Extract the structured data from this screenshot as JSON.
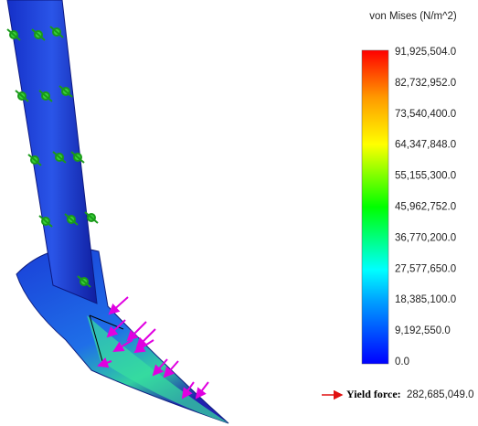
{
  "legend": {
    "title": "von Mises (N/m^2)",
    "ticks": [
      "91,925,504.0",
      "82,732,952.0",
      "73,540,400.0",
      "64,347,848.0",
      "55,155,300.0",
      "45,962,752.0",
      "36,770,200.0",
      "27,577,650.0",
      "18,385,100.0",
      "9,192,550.0",
      "0.0"
    ]
  },
  "yield_force": {
    "label": "Yield force:",
    "value": "282,685,049.0"
  }
}
